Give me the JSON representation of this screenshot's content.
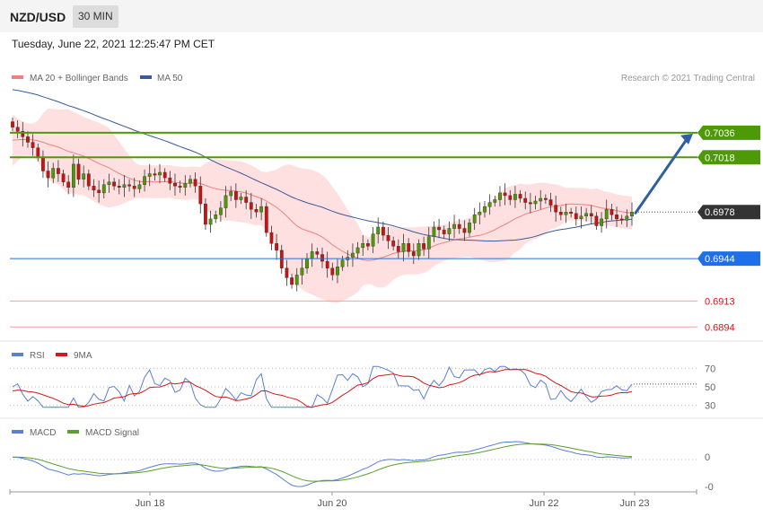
{
  "header": {
    "pair": "NZD/USD",
    "timeframe": "30 MIN"
  },
  "datetime": "Tuesday, June 22, 2021 12:25:47 PM CET",
  "copyright": "Research © 2021 Trading Central",
  "colors": {
    "ma20": "#f08080",
    "ma50": "#3a5a99",
    "band_fill": "#ffe0e0",
    "resistance": "#4e9a06",
    "support": "#1e6fe8",
    "red_level": "#e06060",
    "current": "#333333",
    "rsi": "#5b7fd6",
    "rsi_ma": "#d11919",
    "macd": "#5b7fd6",
    "macd_signal": "#5aa02c",
    "arrow": "#2f5fa0",
    "candle_up": "#4e9a06",
    "candle_down": "#cc1111"
  },
  "chart_data": [
    {
      "type": "candlestick",
      "panel": "price",
      "legend": [
        {
          "name": "MA 20 + Bollinger Bands",
          "color": "#f08080"
        },
        {
          "name": "MA 50",
          "color": "#3a5a99"
        }
      ],
      "legend_position": "top-left",
      "ylim": [
        0.6885,
        0.707
      ],
      "x_ticks": [
        "Jun 18",
        "Jun 20",
        "Jun 22",
        "Jun 23"
      ],
      "levels": [
        {
          "value": 0.7036,
          "label": "0.7036",
          "kind": "resistance"
        },
        {
          "value": 0.7018,
          "label": "0.7018",
          "kind": "resistance"
        },
        {
          "value": 0.6978,
          "label": "0.6978",
          "kind": "current"
        },
        {
          "value": 0.6944,
          "label": "0.6944",
          "kind": "support"
        },
        {
          "value": 0.6913,
          "label": "0.6913",
          "kind": "red"
        },
        {
          "value": 0.6894,
          "label": "0.6894",
          "kind": "red"
        }
      ],
      "closes": [
        0.704,
        0.7037,
        0.7033,
        0.7029,
        0.7025,
        0.7018,
        0.7008,
        0.7003,
        0.701,
        0.7006,
        0.7,
        0.6996,
        0.7013,
        0.7002,
        0.7006,
        0.6997,
        0.6994,
        0.6992,
        0.6998,
        0.7,
        0.6997,
        0.6996,
        0.6998,
        0.6997,
        0.6995,
        0.6998,
        0.7004,
        0.7006,
        0.7005,
        0.7007,
        0.7003,
        0.6999,
        0.6997,
        0.6996,
        0.6999,
        0.7002,
        0.6997,
        0.6984,
        0.6969,
        0.6973,
        0.6976,
        0.6981,
        0.699,
        0.6993,
        0.6987,
        0.6989,
        0.6985,
        0.698,
        0.6978,
        0.6982,
        0.6963,
        0.6955,
        0.695,
        0.6937,
        0.693,
        0.6925,
        0.6932,
        0.6937,
        0.6944,
        0.6949,
        0.6947,
        0.6942,
        0.6937,
        0.6932,
        0.6938,
        0.6943,
        0.6945,
        0.6948,
        0.6952,
        0.6955,
        0.6953,
        0.6962,
        0.6967,
        0.6961,
        0.6957,
        0.6953,
        0.6949,
        0.6955,
        0.6949,
        0.6946,
        0.6955,
        0.6951,
        0.696,
        0.6967,
        0.6965,
        0.6962,
        0.6966,
        0.6969,
        0.6966,
        0.6963,
        0.697,
        0.6976,
        0.6978,
        0.6982,
        0.6985,
        0.6987,
        0.6992,
        0.699,
        0.6987,
        0.6991,
        0.6988,
        0.6985,
        0.6984,
        0.6986,
        0.6988,
        0.6987,
        0.6983,
        0.6978,
        0.6976,
        0.6978,
        0.6977,
        0.6973,
        0.6975,
        0.6977,
        0.6975,
        0.6968,
        0.6973,
        0.698,
        0.6976,
        0.6973,
        0.6972,
        0.6975,
        0.6978
      ],
      "ma20_start": 0.703,
      "ma50_start": 0.7068,
      "annotation": "arrow pointing up toward 0.7036"
    },
    {
      "type": "line",
      "panel": "rsi",
      "legend": [
        {
          "name": "RSI",
          "color": "#5b7fd6"
        },
        {
          "name": "9MA",
          "color": "#d11919"
        }
      ],
      "y_ticks": [
        70,
        50,
        30
      ],
      "ylim": [
        20,
        80
      ]
    },
    {
      "type": "line",
      "panel": "macd",
      "legend": [
        {
          "name": "MACD",
          "color": "#5b7fd6"
        },
        {
          "name": "MACD Signal",
          "color": "#5aa02c"
        }
      ],
      "y_ticks": [
        "0",
        "-0"
      ]
    }
  ]
}
